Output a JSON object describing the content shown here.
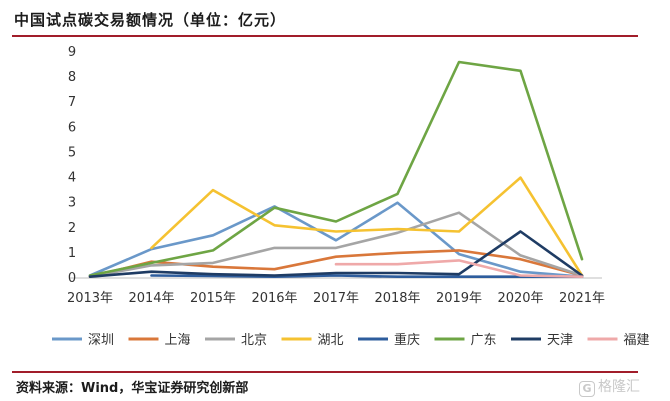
{
  "header": {
    "title": "中国试点碳交易额情况（单位：亿元）"
  },
  "footer": {
    "source": "资料来源：Wind，华宝证券研究创新部",
    "watermark": "格隆汇"
  },
  "chart_data": {
    "type": "line",
    "title": "中国试点碳交易额情况（单位：亿元）",
    "x": [
      "2013年",
      "2014年",
      "2015年",
      "2016年",
      "2017年",
      "2018年",
      "2019年",
      "2020年",
      "2021年"
    ],
    "ylim": [
      0,
      9
    ],
    "yticks": [
      0,
      1,
      2,
      3,
      4,
      5,
      6,
      7,
      8,
      9
    ],
    "grid": false,
    "legend_position": "bottom",
    "series": [
      {
        "name": "深圳",
        "color": "#6a98c9",
        "values": [
          0.1,
          1.15,
          1.7,
          2.85,
          1.5,
          3.0,
          0.95,
          0.25,
          0.05
        ]
      },
      {
        "name": "上海",
        "color": "#d9773a",
        "values": [
          0.05,
          0.65,
          0.45,
          0.35,
          0.85,
          1.0,
          1.1,
          0.75,
          0.1
        ]
      },
      {
        "name": "北京",
        "color": "#a5a5a5",
        "values": [
          0.05,
          0.5,
          0.6,
          1.2,
          1.2,
          1.8,
          2.6,
          0.9,
          0.1
        ]
      },
      {
        "name": "湖北",
        "color": "#f5c231",
        "values": [
          null,
          1.2,
          3.5,
          2.1,
          1.85,
          1.95,
          1.85,
          4.0,
          0.1
        ]
      },
      {
        "name": "重庆",
        "color": "#2e5d9d",
        "values": [
          null,
          0.1,
          0.08,
          0.05,
          0.1,
          0.05,
          0.05,
          0.05,
          0.05
        ]
      },
      {
        "name": "广东",
        "color": "#6ea544",
        "values": [
          0.1,
          0.6,
          1.1,
          2.8,
          2.25,
          3.35,
          8.6,
          8.25,
          0.75
        ]
      },
      {
        "name": "天津",
        "color": "#1f3c64",
        "values": [
          0.05,
          0.25,
          0.15,
          0.1,
          0.2,
          0.2,
          0.15,
          1.85,
          0.1
        ]
      },
      {
        "name": "福建",
        "color": "#efa9a9",
        "values": [
          null,
          null,
          null,
          null,
          0.55,
          0.55,
          0.7,
          0.1,
          0.05
        ]
      }
    ]
  }
}
